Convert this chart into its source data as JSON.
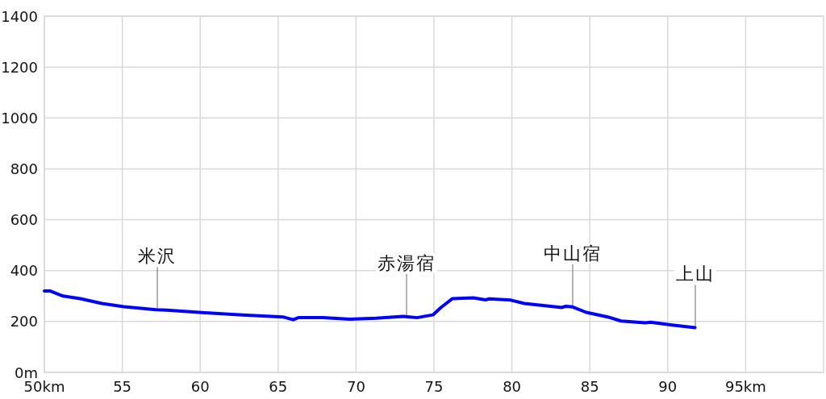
{
  "chart_data": {
    "type": "line",
    "x": [
      50,
      50.35,
      51.2,
      52.3,
      53.7,
      55.1,
      57.16,
      57.85,
      60.1,
      62.7,
      65.3,
      65.96,
      66.3,
      67.86,
      69.6,
      71.3,
      73.03,
      73.9,
      74.93,
      75.45,
      76.19,
      77.52,
      78.3,
      78.55,
      79.93,
      80.8,
      83.2,
      83.47,
      83.9,
      84.77,
      86.14,
      87.0,
      88.56,
      88.9,
      90.28,
      91.75
    ],
    "values": [
      320,
      320,
      300,
      290,
      271,
      258,
      246,
      245,
      235,
      226,
      218,
      207,
      215,
      215,
      209,
      213,
      220,
      215,
      226,
      255,
      290,
      293,
      285,
      289,
      284,
      271,
      255,
      260,
      257,
      236,
      218,
      202,
      195,
      197,
      186,
      176
    ],
    "color": "#0000ff",
    "xlim": [
      50,
      100
    ],
    "ylim": [
      0,
      1400
    ],
    "xticks": [
      {
        "value": 50,
        "label": "50km"
      },
      55,
      60,
      65,
      70,
      75,
      80,
      85,
      90,
      {
        "value": 95,
        "label": "95km"
      }
    ],
    "yticks": [
      {
        "value": 0,
        "label": "0m"
      },
      200,
      400,
      600,
      800,
      1000,
      1200,
      1400
    ],
    "grid": true,
    "annotations": [
      {
        "text": "米沢",
        "x": 57.25,
        "y": 246
      },
      {
        "text": "赤湯宿",
        "x": 73.24,
        "y": 219
      },
      {
        "text": "中山宿",
        "x": 83.9,
        "y": 257
      },
      {
        "text": "上山",
        "x": 91.77,
        "y": 176
      }
    ]
  }
}
